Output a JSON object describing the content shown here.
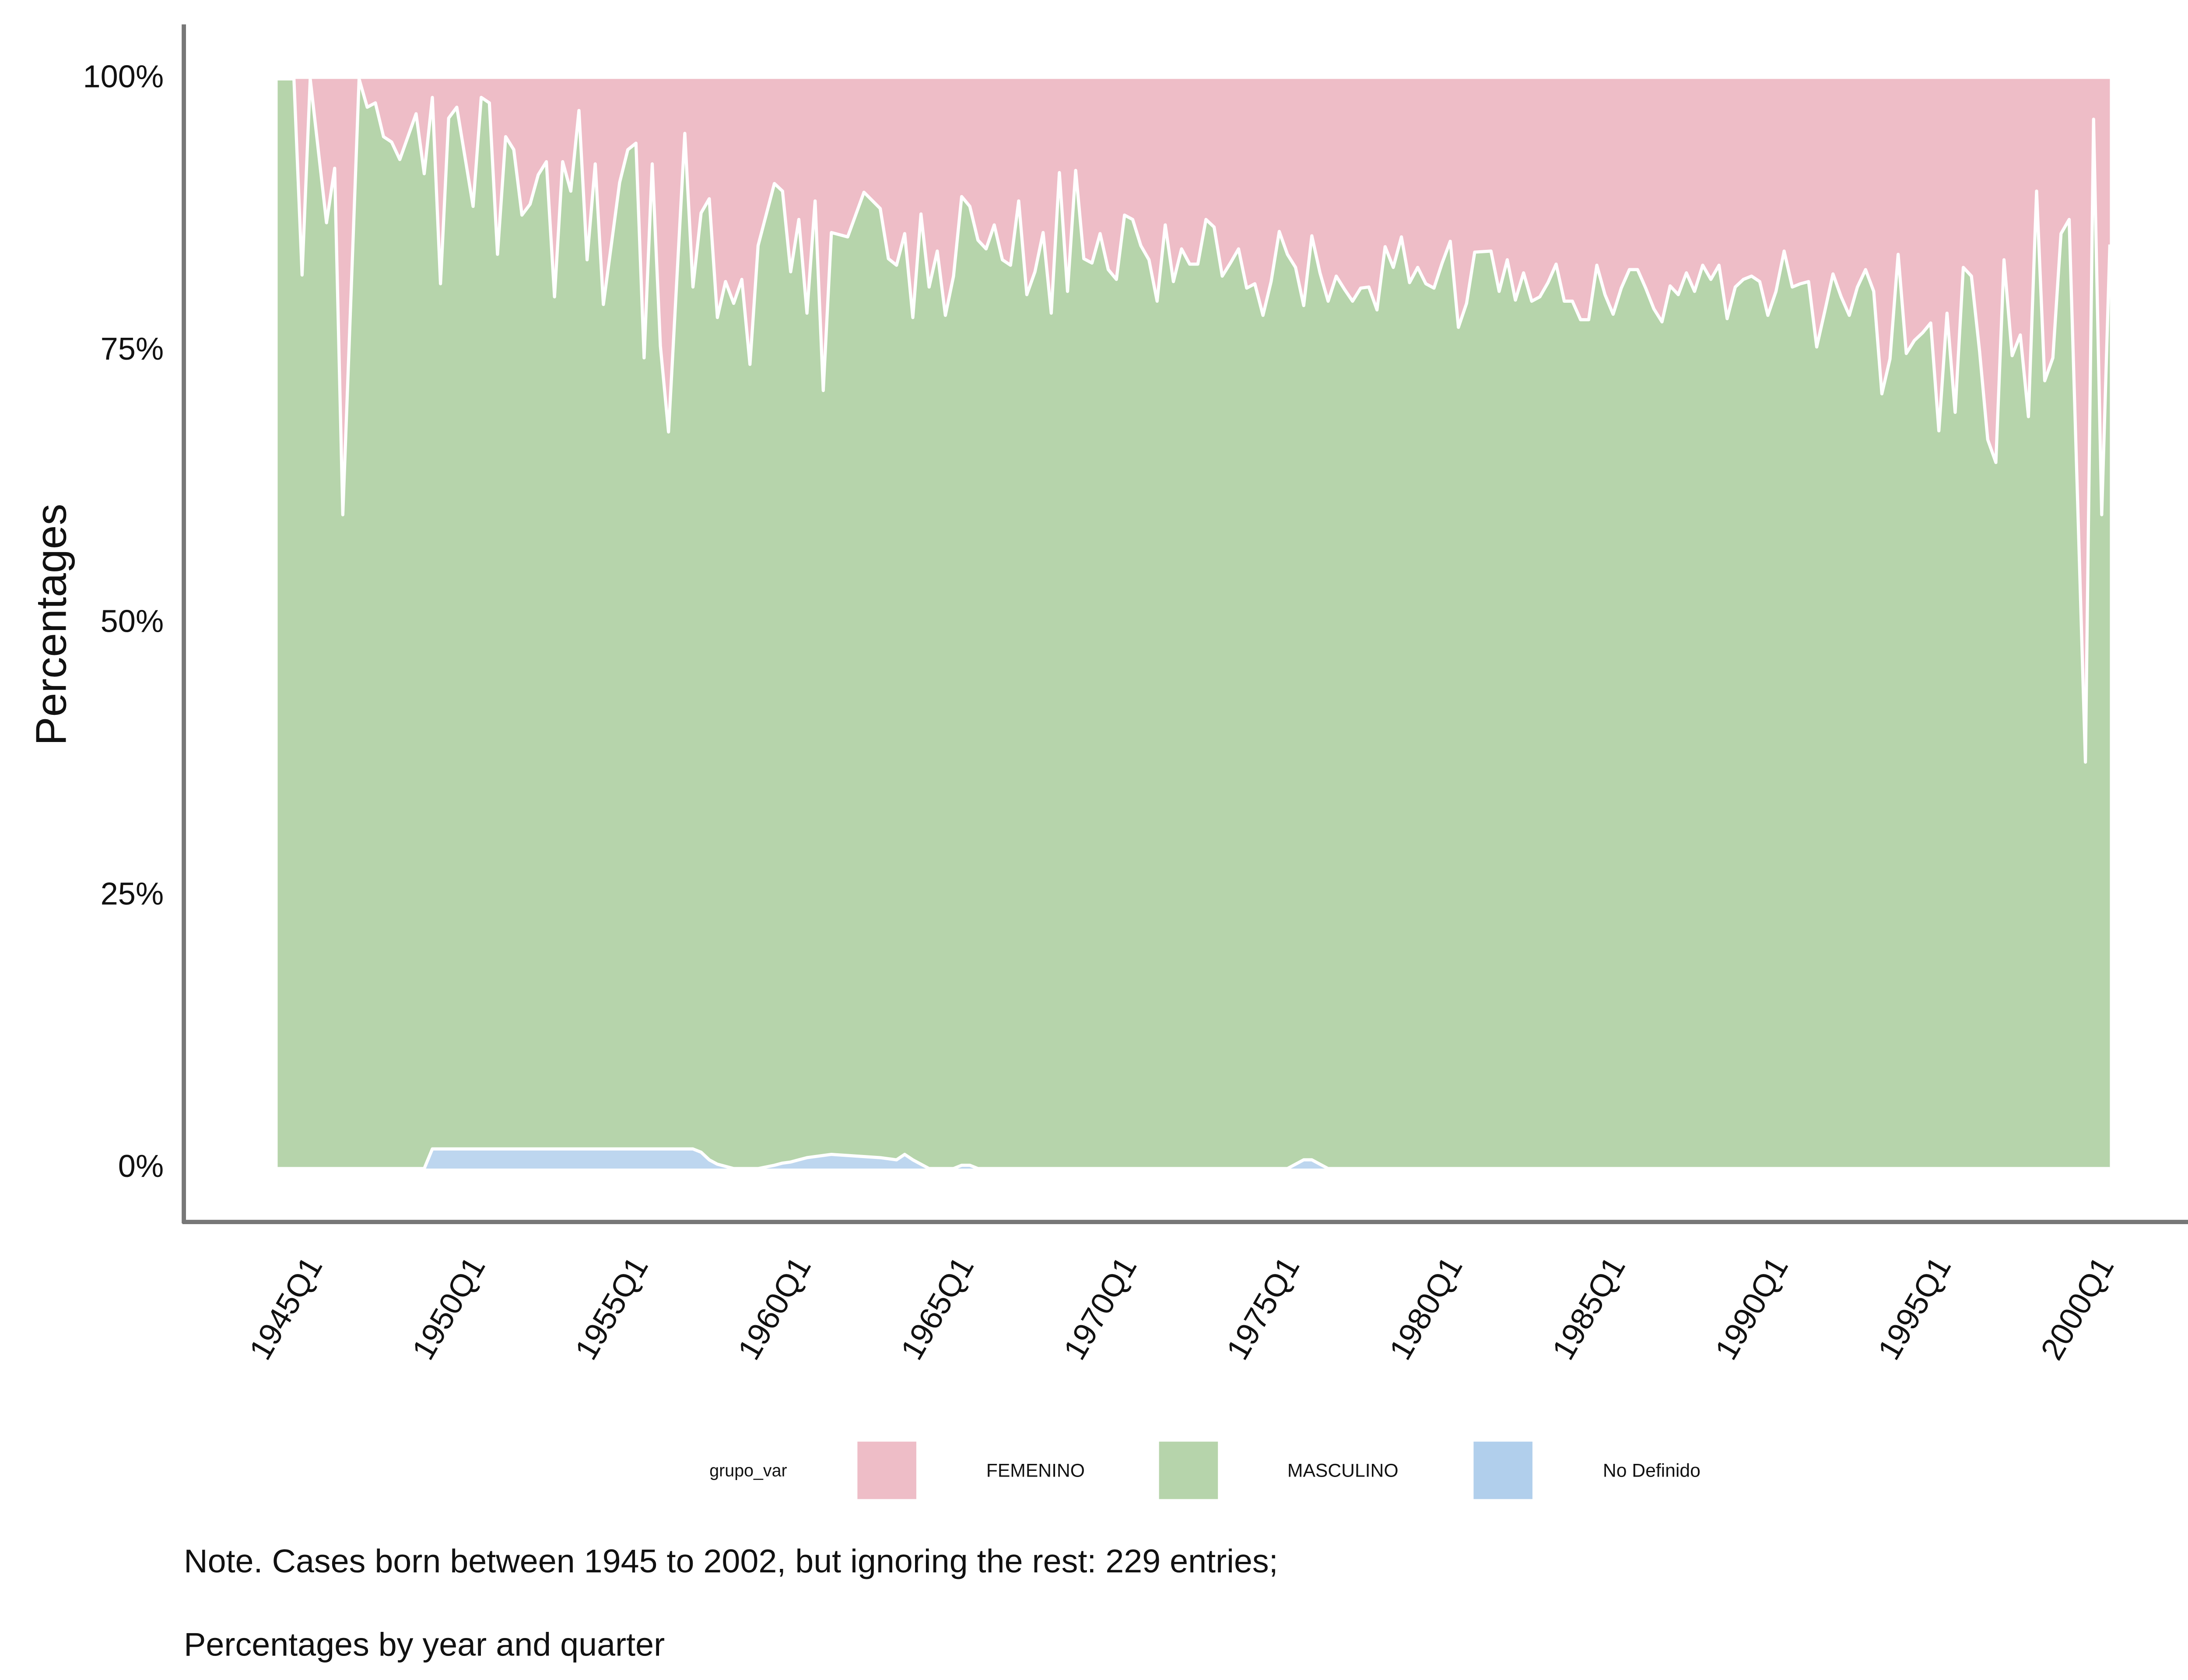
{
  "chart_data": {
    "type": "area",
    "stacked": true,
    "y_label": "Percentages",
    "legend_title": "grupo_var",
    "legend_position": "bottom",
    "caption": [
      "Note. Cases born between 1945 to 2002, but ignoring the rest: 229 entries;",
      "Percentages by year and quarter"
    ],
    "xlim": [
      1941.12,
      2003.82
    ],
    "xticks": [
      {
        "value": 1945,
        "label": "1945Q1"
      },
      {
        "value": 1950,
        "label": "1950Q1"
      },
      {
        "value": 1955,
        "label": "1955Q1"
      },
      {
        "value": 1960,
        "label": "1960Q1"
      },
      {
        "value": 1965,
        "label": "1965Q1"
      },
      {
        "value": 1970,
        "label": "1970Q1"
      },
      {
        "value": 1975,
        "label": "1975Q1"
      },
      {
        "value": 1980,
        "label": "1980Q1"
      },
      {
        "value": 1985,
        "label": "1985Q1"
      },
      {
        "value": 1990,
        "label": "1990Q1"
      },
      {
        "value": 1995,
        "label": "1995Q1"
      },
      {
        "value": 2000,
        "label": "2000Q1"
      }
    ],
    "ylim": [
      -4.9,
      105
    ],
    "yticks": [
      {
        "value": 0,
        "label": "0%"
      },
      {
        "value": 25,
        "label": "25%"
      },
      {
        "value": 50,
        "label": "50%"
      },
      {
        "value": 75,
        "label": "75%"
      },
      {
        "value": 100,
        "label": "100%"
      }
    ],
    "x": [
      1944,
      1944.5,
      1944.75,
      1945,
      1945.5,
      1945.75,
      1946,
      1946.5,
      1946.75,
      1947,
      1947.25,
      1947.5,
      1947.75,
      1948.25,
      1948.5,
      1948.75,
      1949,
      1949.25,
      1949.5,
      1950,
      1950.25,
      1950.5,
      1950.75,
      1951,
      1951.25,
      1951.5,
      1951.75,
      1952,
      1952.25,
      1952.5,
      1952.75,
      1953,
      1953.25,
      1953.5,
      1953.75,
      1954,
      1954.5,
      1954.75,
      1955,
      1955.25,
      1955.5,
      1955.75,
      1956,
      1956.5,
      1956.75,
      1957,
      1957.25,
      1957.5,
      1957.75,
      1958,
      1958.25,
      1958.5,
      1958.75,
      1959.25,
      1959.5,
      1959.75,
      1960,
      1960.25,
      1960.5,
      1960.75,
      1961,
      1961.5,
      1962,
      1962.5,
      1962.75,
      1963,
      1963.25,
      1963.5,
      1963.75,
      1964,
      1964.25,
      1964.5,
      1964.75,
      1965,
      1965.25,
      1965.5,
      1965.75,
      1966,
      1966.25,
      1966.5,
      1966.75,
      1967,
      1967.25,
      1967.5,
      1967.75,
      1968,
      1968.25,
      1968.5,
      1968.75,
      1969,
      1969.25,
      1969.5,
      1969.75,
      1970,
      1970.25,
      1970.5,
      1970.75,
      1971,
      1971.25,
      1971.5,
      1971.75,
      1972,
      1972.25,
      1972.5,
      1972.75,
      1973,
      1973.25,
      1973.5,
      1973.75,
      1974,
      1974.25,
      1974.5,
      1974.75,
      1975,
      1975.25,
      1975.5,
      1975.75,
      1976,
      1976.25,
      1976.5,
      1976.75,
      1977,
      1977.25,
      1977.5,
      1977.75,
      1978,
      1978.25,
      1978.5,
      1978.75,
      1979,
      1979.25,
      1979.5,
      1979.75,
      1980,
      1980.25,
      1980.5,
      1980.75,
      1981.25,
      1981.5,
      1981.75,
      1982,
      1982.25,
      1982.5,
      1982.75,
      1983,
      1983.25,
      1983.5,
      1983.75,
      1984,
      1984.25,
      1984.5,
      1984.75,
      1985,
      1985.25,
      1985.5,
      1985.75,
      1986,
      1986.25,
      1986.5,
      1986.75,
      1987,
      1987.25,
      1987.5,
      1987.75,
      1988,
      1988.25,
      1988.5,
      1988.75,
      1989,
      1989.25,
      1989.5,
      1989.75,
      1990,
      1990.25,
      1990.5,
      1990.75,
      1991,
      1991.25,
      1991.5,
      1991.75,
      1992,
      1992.25,
      1992.5,
      1992.75,
      1993,
      1993.25,
      1993.5,
      1993.75,
      1994,
      1994.25,
      1994.5,
      1994.75,
      1995,
      1995.25,
      1995.5,
      1995.75,
      1996,
      1996.25,
      1996.5,
      1996.75,
      1997,
      1997.25,
      1997.5,
      1997.75,
      1998,
      1998.25,
      1998.5,
      1998.75,
      1999,
      1999.5,
      1999.75,
      2000,
      2000.25
    ],
    "series": [
      {
        "name": "FEMENINO",
        "color": "#eebdc7",
        "values": [
          0,
          0,
          18,
          0,
          13.2,
          8.2,
          40,
          0,
          2.6,
          2.2,
          5.3,
          5.8,
          7.4,
          3.2,
          8.7,
          1.7,
          18.8,
          3.6,
          2.6,
          11.7,
          1.7,
          2.2,
          16.1,
          5.3,
          6.5,
          12.5,
          11.5,
          8.8,
          7.6,
          20,
          7.6,
          10.3,
          2.9,
          16.6,
          7.8,
          20.7,
          9.5,
          6.5,
          5.9,
          25.6,
          7.8,
          24.5,
          32.4,
          5,
          19.1,
          12.3,
          11,
          21.9,
          18.6,
          20.6,
          18.4,
          26.2,
          15.3,
          9.6,
          10.3,
          17.7,
          12.9,
          21.5,
          11.2,
          28.6,
          14.1,
          14.5,
          10.4,
          11.9,
          16.5,
          17.1,
          14.2,
          21.9,
          12.4,
          19.1,
          15.8,
          21.7,
          18.1,
          10.8,
          11.7,
          14.8,
          15.6,
          13.4,
          16.6,
          17.1,
          11.2,
          19.8,
          17.7,
          14.1,
          21.5,
          8.6,
          19.5,
          8.4,
          16.5,
          16.9,
          14.2,
          17.5,
          18.4,
          12.5,
          12.9,
          15.3,
          16.6,
          20.4,
          13.4,
          18.6,
          15.6,
          17,
          17,
          12.9,
          13.6,
          18.1,
          16.9,
          15.6,
          19.2,
          18.8,
          21.7,
          18.6,
          14,
          16.1,
          17.3,
          20.8,
          14.4,
          17.8,
          20.4,
          18.1,
          19.3,
          20.4,
          19.2,
          19.1,
          21.2,
          15.4,
          17.3,
          14.5,
          18.7,
          17.3,
          18.8,
          19.2,
          16.9,
          14.9,
          22.8,
          20.6,
          15.9,
          15.8,
          19.5,
          16.6,
          20.3,
          17.8,
          20.4,
          20,
          18.7,
          17,
          20.4,
          20.4,
          22.1,
          22.1,
          17.1,
          19.8,
          21.6,
          19.2,
          17.5,
          17.5,
          19.2,
          21.1,
          22.3,
          19,
          19.8,
          17.8,
          19.5,
          17.1,
          18.4,
          17.1,
          22,
          19.1,
          18.4,
          18.1,
          18.6,
          21.7,
          19.5,
          15.8,
          19.1,
          18.8,
          18.6,
          24.6,
          21.3,
          17.9,
          20,
          21.7,
          19.1,
          17.5,
          19.5,
          28.9,
          25.7,
          16.1,
          25.2,
          24,
          23.3,
          22.4,
          32.3,
          21.5,
          30.6,
          17.3,
          18.1,
          25,
          33.1,
          35.2,
          16.6,
          25.4,
          23.5,
          31,
          10.3,
          27.7,
          25.6,
          14.2,
          12.9,
          62.7,
          3.7,
          40,
          15.2
        ]
      },
      {
        "name": "MASCULINO",
        "color": "#b6d4ab",
        "values": [
          100,
          100,
          82,
          100,
          86.8,
          91.8,
          60,
          100,
          97.4,
          97.8,
          94.7,
          94.2,
          92.6,
          96.8,
          91.3,
          96.5,
          79.4,
          94.6,
          95.6,
          86.5,
          96.5,
          96,
          82.1,
          92.9,
          91.7,
          85.7,
          86.7,
          89.4,
          90.6,
          78.2,
          90.6,
          87.9,
          95.3,
          81.6,
          90.4,
          77.5,
          88.7,
          91.7,
          92.3,
          72.6,
          90.4,
          73.7,
          65.8,
          93.2,
          79.1,
          86.2,
          88.2,
          77.7,
          81.2,
          79.4,
          81.6,
          73.8,
          84.7,
          90.1,
          89.2,
          81.7,
          86.3,
          77.5,
          87.7,
          70.2,
          84.6,
          84.3,
          88.5,
          87.1,
          82.6,
          82.1,
          84.5,
          77.3,
          87.2,
          80.9,
          84.2,
          78.3,
          81.9,
          88.9,
          88,
          85.2,
          84.4,
          86.6,
          83.4,
          82.9,
          88.8,
          80.2,
          82.3,
          85.9,
          78.5,
          91.4,
          80.5,
          91.6,
          83.5,
          83.1,
          85.8,
          82.5,
          81.6,
          87.5,
          87.1,
          84.7,
          83.4,
          79.6,
          86.6,
          81.4,
          84.4,
          83,
          83,
          87.1,
          86.4,
          81.9,
          83.1,
          84.4,
          80.8,
          81.2,
          78.3,
          81.4,
          86,
          83.9,
          82.3,
          78.4,
          84.8,
          81.8,
          79.6,
          81.9,
          80.7,
          79.6,
          80.8,
          80.9,
          78.8,
          84.6,
          82.7,
          85.5,
          81.3,
          82.7,
          81.2,
          80.8,
          83.1,
          85.1,
          77.2,
          79.4,
          84.1,
          84.2,
          80.5,
          83.4,
          79.7,
          82.2,
          79.6,
          80,
          81.3,
          83,
          79.6,
          79.6,
          77.9,
          77.9,
          82.9,
          80.2,
          78.4,
          80.8,
          82.5,
          82.5,
          80.8,
          78.9,
          77.7,
          81,
          80.2,
          82.2,
          80.5,
          82.9,
          81.6,
          82.9,
          78,
          80.9,
          81.6,
          81.9,
          81.4,
          78.3,
          80.5,
          84.2,
          80.9,
          81.2,
          81.4,
          75.4,
          78.7,
          82.1,
          80,
          78.3,
          80.9,
          82.5,
          80.5,
          71.1,
          74.3,
          83.9,
          74.8,
          76,
          76.7,
          77.6,
          67.7,
          78.5,
          69.4,
          82.7,
          81.9,
          75,
          66.9,
          64.8,
          83.4,
          74.6,
          76.5,
          69,
          89.7,
          72.3,
          74.4,
          85.8,
          87.1,
          37.3,
          96.3,
          60,
          84.8
        ]
      },
      {
        "name": "No Definido",
        "color": "#b1cfec",
        "values": [
          0,
          0,
          0,
          0,
          0,
          0,
          0,
          0,
          0,
          0,
          0,
          0,
          0,
          0,
          0,
          1.8,
          1.8,
          1.8,
          1.8,
          1.8,
          1.8,
          1.8,
          1.8,
          1.8,
          1.8,
          1.8,
          1.8,
          1.8,
          1.8,
          1.8,
          1.8,
          1.8,
          1.8,
          1.8,
          1.8,
          1.8,
          1.8,
          1.8,
          1.8,
          1.8,
          1.8,
          1.8,
          1.8,
          1.8,
          1.8,
          1.5,
          0.8,
          0.4,
          0.2,
          0,
          0,
          0,
          0,
          0.3,
          0.5,
          0.6,
          0.8,
          1,
          1.1,
          1.2,
          1.3,
          1.2,
          1.1,
          1,
          0.9,
          0.8,
          1.3,
          0.8,
          0.4,
          0,
          0,
          0,
          0,
          0.3,
          0.3,
          0,
          0,
          0,
          0,
          0,
          0,
          0,
          0,
          0,
          0,
          0,
          0,
          0,
          0,
          0,
          0,
          0,
          0,
          0,
          0,
          0,
          0,
          0,
          0,
          0,
          0,
          0,
          0,
          0,
          0,
          0,
          0,
          0,
          0,
          0,
          0,
          0,
          0,
          0,
          0.4,
          0.8,
          0.8,
          0.4,
          0,
          0,
          0,
          0,
          0,
          0,
          0,
          0,
          0,
          0,
          0,
          0,
          0,
          0,
          0,
          0,
          0,
          0,
          0,
          0,
          0,
          0,
          0,
          0,
          0,
          0,
          0,
          0,
          0,
          0,
          0,
          0,
          0,
          0,
          0,
          0,
          0,
          0,
          0,
          0,
          0,
          0,
          0,
          0,
          0,
          0,
          0,
          0,
          0,
          0,
          0,
          0,
          0,
          0,
          0,
          0,
          0,
          0,
          0,
          0,
          0,
          0,
          0,
          0,
          0,
          0,
          0,
          0,
          0,
          0,
          0,
          0,
          0,
          0,
          0,
          0,
          0,
          0,
          0,
          0,
          0,
          0,
          0,
          0,
          0,
          0,
          0,
          0,
          0,
          0,
          0,
          0,
          0,
          0,
          0
        ]
      }
    ]
  }
}
